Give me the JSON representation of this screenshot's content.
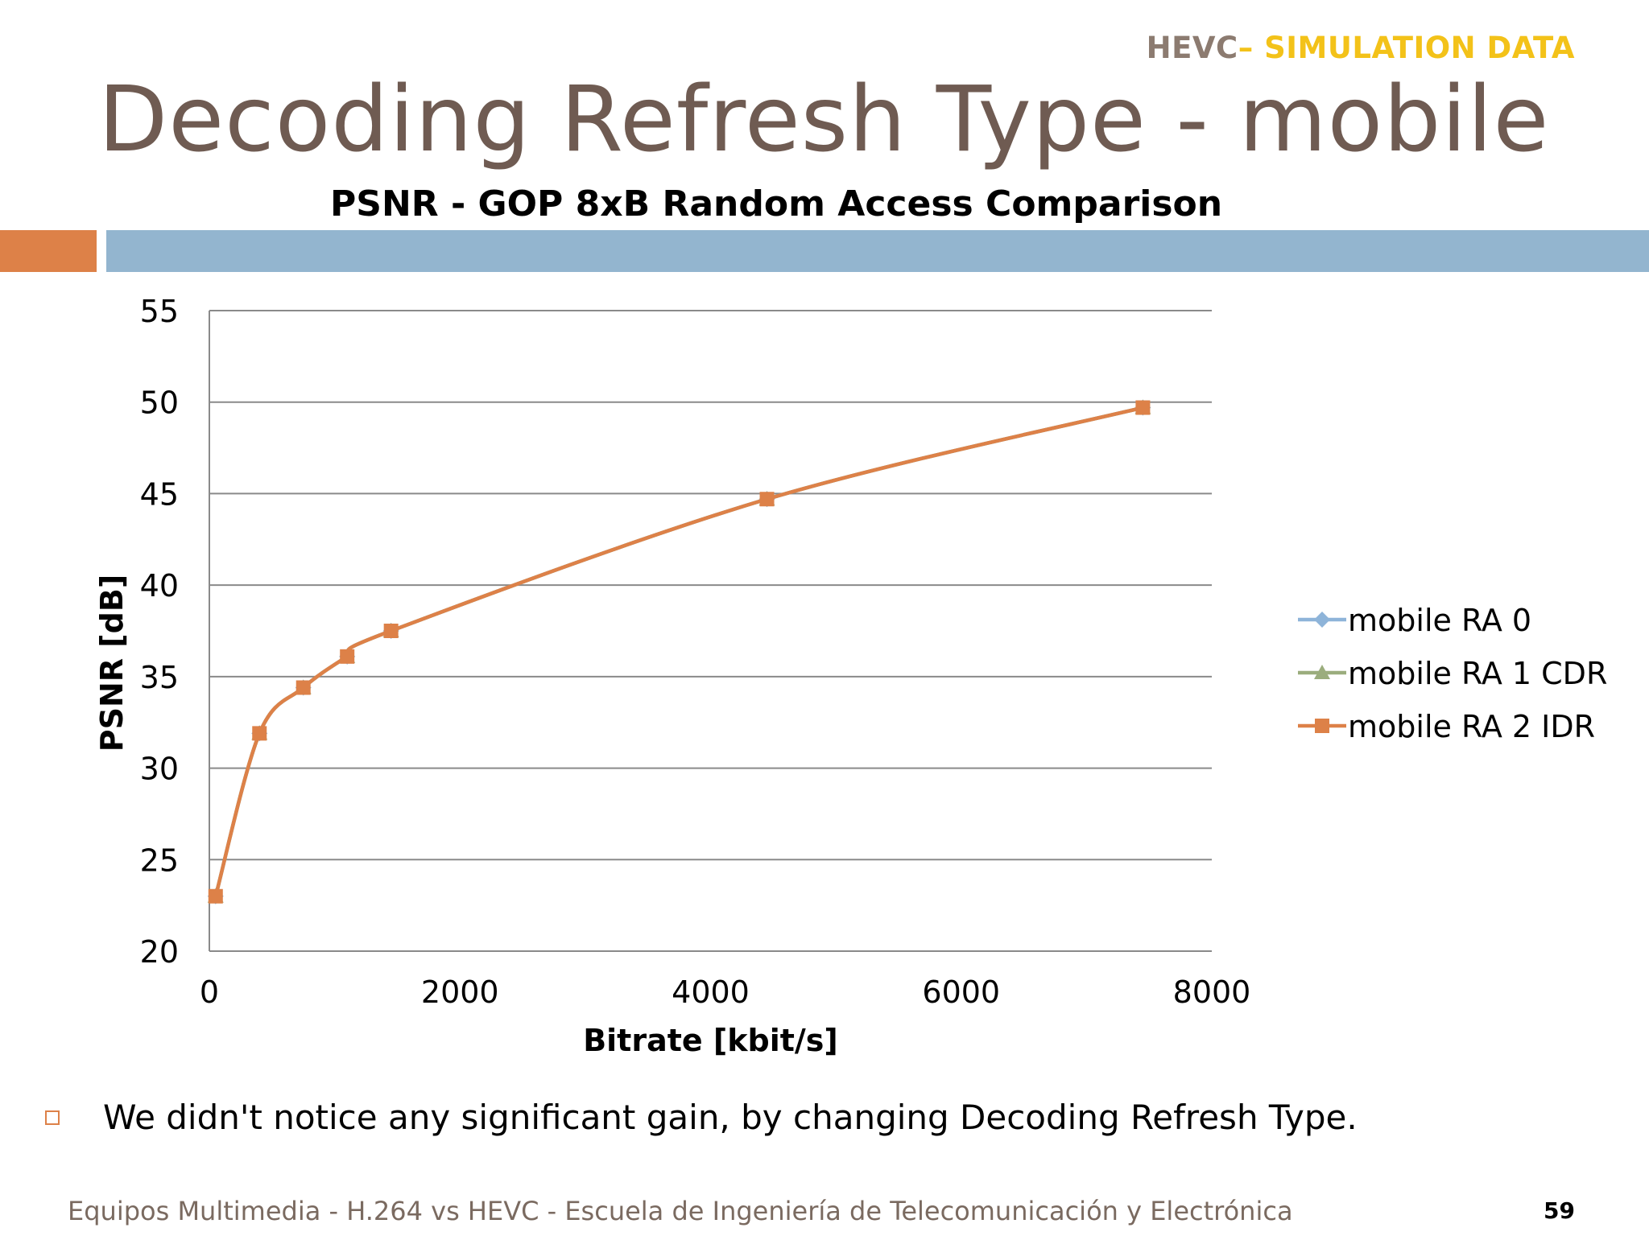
{
  "header": {
    "tag_part1": "HEVC",
    "tag_part2": "– SIMULATION DATA"
  },
  "slide": {
    "title": "Decoding Refresh Type - mobile",
    "bullet": "We didn't notice any significant gain, by changing Decoding Refresh Type.",
    "footer": "Equipos Multimedia - H.264 vs HEVC - Escuela de Ingeniería de Telecomunicación y Electrónica",
    "page_number": "59"
  },
  "colors": {
    "accent_orange": "#dd8148",
    "accent_blue": "#93b5cf",
    "title": "#6f5b52",
    "tag_gold": "#f3c219"
  },
  "chart_data": {
    "type": "line",
    "title": "PSNR - GOP 8xB Random Access Comparison",
    "xlabel": "Bitrate [kbit/s]",
    "ylabel": "PSNR [dB]",
    "xlim": [
      0,
      8000
    ],
    "ylim": [
      20,
      55
    ],
    "xticks": [
      0,
      2000,
      4000,
      6000,
      8000
    ],
    "yticks": [
      20,
      25,
      30,
      35,
      40,
      45,
      50,
      55
    ],
    "grid": "horizontal",
    "legend_position": "right",
    "series": [
      {
        "name": "mobile RA 0",
        "color": "#8eb4d9",
        "marker": "diamond",
        "x": [
          50,
          400,
          750,
          1100,
          1450,
          4450,
          7450
        ],
        "y": [
          23.0,
          31.9,
          34.4,
          36.1,
          37.5,
          44.7,
          49.7
        ]
      },
      {
        "name": "mobile RA 1 CDR",
        "color": "#9bad7d",
        "marker": "triangle",
        "x": [
          50,
          400,
          750,
          1100,
          1450,
          4450,
          7450
        ],
        "y": [
          23.0,
          31.9,
          34.4,
          36.1,
          37.5,
          44.7,
          49.7
        ]
      },
      {
        "name": "mobile RA 2 IDR",
        "color": "#dd8148",
        "marker": "square",
        "x": [
          50,
          400,
          750,
          1100,
          1450,
          4450,
          7450
        ],
        "y": [
          23.0,
          31.9,
          34.4,
          36.1,
          37.5,
          44.7,
          49.7
        ]
      }
    ]
  }
}
